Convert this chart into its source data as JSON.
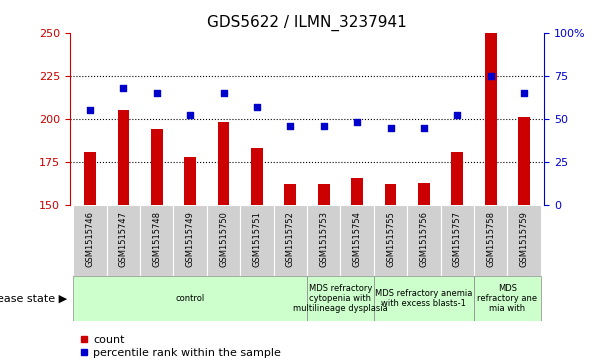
{
  "title": "GDS5622 / ILMN_3237941",
  "samples": [
    "GSM1515746",
    "GSM1515747",
    "GSM1515748",
    "GSM1515749",
    "GSM1515750",
    "GSM1515751",
    "GSM1515752",
    "GSM1515753",
    "GSM1515754",
    "GSM1515755",
    "GSM1515756",
    "GSM1515757",
    "GSM1515758",
    "GSM1515759"
  ],
  "bar_values": [
    181,
    205,
    194,
    178,
    198,
    183,
    162,
    162,
    166,
    162,
    163,
    181,
    250,
    201
  ],
  "dot_values": [
    55,
    68,
    65,
    52,
    65,
    57,
    46,
    46,
    48,
    45,
    45,
    52,
    75,
    65
  ],
  "ylim_left": [
    150,
    250
  ],
  "ylim_right": [
    0,
    100
  ],
  "yticks_left": [
    150,
    175,
    200,
    225,
    250
  ],
  "yticks_right": [
    0,
    25,
    50,
    75,
    100
  ],
  "bar_color": "#cc0000",
  "dot_color": "#0000cc",
  "bg_color": "#ffffff",
  "disease_groups": [
    {
      "label": "control",
      "start": 0,
      "end": 7
    },
    {
      "label": "MDS refractory\ncytopenia with\nmultilineage dysplasia",
      "start": 7,
      "end": 9
    },
    {
      "label": "MDS refractory anemia\nwith excess blasts-1",
      "start": 9,
      "end": 12
    },
    {
      "label": "MDS\nrefractory ane\nmia with",
      "start": 12,
      "end": 14
    }
  ],
  "disease_group_color": "#ccffcc",
  "xlabel_label": "disease state",
  "legend_count": "count",
  "legend_percentile": "percentile rank within the sample",
  "title_fontsize": 11,
  "tick_fontsize": 8,
  "sample_fontsize": 6,
  "disease_fontsize": 6,
  "legend_fontsize": 8
}
